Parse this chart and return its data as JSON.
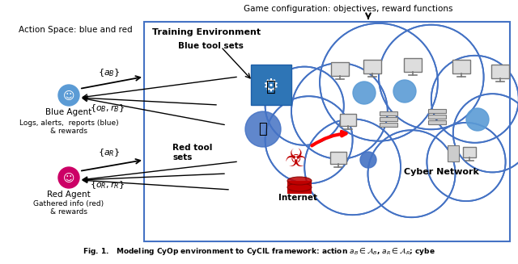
{
  "bg_color": "#ffffff",
  "box_color": "#4472c4",
  "cloud_color": "#4472c4",
  "game_config_text": "Game configuration: objectives, reward functions",
  "training_env_text": "Training Environment",
  "blue_toolsets_text": "Blue tool sets",
  "red_toolsets_text": "Red tool\nsets",
  "cyber_network_text": "Cyber Network",
  "internet_text": "Internet",
  "action_space_text": "Action Space: blue and red",
  "blue_agent_label": "Blue Agent",
  "red_agent_label": "Red Agent",
  "logs_text": "Logs, alerts,  reports (blue)\n& rewards",
  "gathered_text": "Gathered info (red)\n& rewards",
  "caption": "Fig. 1.   Modeling CyOp environment to CyCIL framework: action $a_B \\in \\mathcal{A}_B$, $a_R \\in \\mathcal{A}_R$; cybe"
}
